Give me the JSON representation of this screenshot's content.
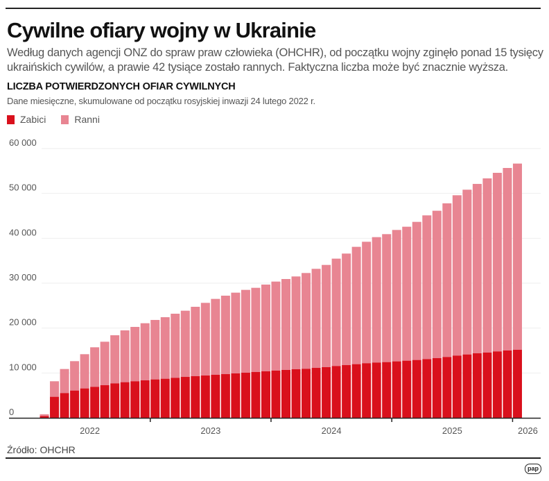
{
  "header": {
    "title": "Cywilne ofiary wojny w Ukrainie",
    "lead": "Według danych agencji ONZ do spraw praw człowieka (OHCHR), od początku wojny zginęło ponad 15 tysięcy ukraińskich cywilów, a prawie 42 tysiące zostało rannych. Faktyczna liczba może być znacznie wyższa.",
    "subtitle": "LICZBA POTWIERDZONYCH OFIAR CYWILNYCH",
    "note": "Dane miesięczne, skumulowane od początku rosyjskiej inwazji 24 lutego 2022 r."
  },
  "footer": {
    "source": "Źródło: OHCHR",
    "logo": "pap"
  },
  "colors": {
    "killed": "#d9101c",
    "injured": "#e88592",
    "grid": "#eeeeee",
    "axis": "#222222"
  },
  "chart_data": {
    "type": "bar",
    "stacked": true,
    "title": "LICZBA POTWIERDZONYCH OFIAR CYWILNYCH",
    "legend": "top-left",
    "grid": true,
    "ylim": [
      0,
      60000
    ],
    "yticks": [
      0,
      10000,
      20000,
      30000,
      40000,
      50000,
      60000
    ],
    "ytick_labels": [
      "0",
      "10 000",
      "20 000",
      "30 000",
      "40 000",
      "50 000",
      "60 000"
    ],
    "xtick_labels": [
      "2022",
      "2023",
      "2024",
      "2025",
      "2026"
    ],
    "categories": [
      "2022-02",
      "2022-03",
      "2022-04",
      "2022-05",
      "2022-06",
      "2022-07",
      "2022-08",
      "2022-09",
      "2022-10",
      "2022-11",
      "2022-12",
      "2023-01",
      "2023-02",
      "2023-03",
      "2023-04",
      "2023-05",
      "2023-06",
      "2023-07",
      "2023-08",
      "2023-09",
      "2023-10",
      "2023-11",
      "2023-12",
      "2024-01",
      "2024-02",
      "2024-03",
      "2024-04",
      "2024-05",
      "2024-06",
      "2024-07",
      "2024-08",
      "2024-09",
      "2024-10",
      "2024-11",
      "2024-12",
      "2025-01",
      "2025-02",
      "2025-03",
      "2025-04",
      "2025-05",
      "2025-06",
      "2025-07",
      "2025-08",
      "2025-09",
      "2025-10",
      "2025-11",
      "2025-12",
      "2026-01"
    ],
    "series": [
      {
        "name": "Zabici",
        "values": [
          400,
          4690,
          5520,
          6080,
          6550,
          6910,
          7270,
          7680,
          7940,
          8150,
          8350,
          8560,
          8710,
          8920,
          9120,
          9280,
          9430,
          9590,
          9740,
          9900,
          10050,
          10210,
          10360,
          10520,
          10670,
          10830,
          10930,
          11130,
          11290,
          11550,
          11750,
          11960,
          12170,
          12320,
          12420,
          12580,
          12730,
          12890,
          13090,
          13300,
          13560,
          13870,
          14120,
          14380,
          14540,
          14800,
          15000,
          15160
        ]
      },
      {
        "name": "Ranni",
        "values": [
          400,
          3460,
          5360,
          6550,
          7630,
          8810,
          9690,
          10720,
          11550,
          12110,
          12730,
          13250,
          13710,
          14280,
          14750,
          15460,
          16190,
          16910,
          17480,
          17990,
          18460,
          18760,
          19330,
          19840,
          20260,
          20670,
          21340,
          22070,
          22780,
          23920,
          24850,
          26140,
          27060,
          27940,
          28510,
          29280,
          29850,
          30770,
          32020,
          32840,
          34230,
          35720,
          36710,
          37740,
          38810,
          39790,
          40670,
          41490
        ]
      }
    ]
  }
}
